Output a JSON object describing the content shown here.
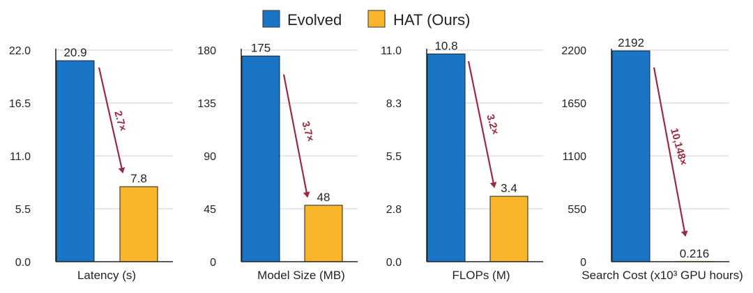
{
  "legend": [
    {
      "label": "Evolved",
      "color": "#1a75c7"
    },
    {
      "label": "HAT (Ours)",
      "color": "#f8b52c"
    }
  ],
  "annotation_color": "#9b2a40",
  "chart_data": [
    {
      "type": "bar",
      "xlabel": "Latency (s)",
      "categories": [
        "Evolved",
        "HAT (Ours)"
      ],
      "values": [
        20.9,
        7.8
      ],
      "value_labels": [
        "20.9",
        "7.8"
      ],
      "ylim": [
        0,
        22
      ],
      "yticks": [
        0,
        5.5,
        11,
        16.5,
        22
      ],
      "ytick_labels": [
        "0.0",
        "5.5",
        "11.0",
        "16.5",
        "22.0"
      ],
      "annotation": "2.7×",
      "grid": true
    },
    {
      "type": "bar",
      "xlabel": "Model Size (MB)",
      "categories": [
        "Evolved",
        "HAT (Ours)"
      ],
      "values": [
        175,
        48
      ],
      "value_labels": [
        "175",
        "48"
      ],
      "ylim": [
        0,
        180
      ],
      "yticks": [
        0,
        45,
        90,
        135,
        180
      ],
      "ytick_labels": [
        "0",
        "45",
        "90",
        "135",
        "180"
      ],
      "annotation": "3.7×",
      "grid": true
    },
    {
      "type": "bar",
      "xlabel": "FLOPs (M)",
      "categories": [
        "Evolved",
        "HAT (Ours)"
      ],
      "values": [
        10.8,
        3.4
      ],
      "value_labels": [
        "10.8",
        "3.4"
      ],
      "ylim": [
        0,
        11
      ],
      "yticks": [
        0,
        2.75,
        5.5,
        8.25,
        11
      ],
      "ytick_labels": [
        "0.0",
        "2.8",
        "5.5",
        "8.3",
        "11.0"
      ],
      "annotation": "3.2×",
      "grid": true
    },
    {
      "type": "bar",
      "xlabel": "Search Cost (x10³ GPU hours)",
      "categories": [
        "Evolved",
        "HAT (Ours)"
      ],
      "values": [
        2192,
        0.216
      ],
      "value_labels": [
        "2192",
        "0.216"
      ],
      "ylim": [
        0,
        2200
      ],
      "yticks": [
        0,
        550,
        1100,
        1650,
        2200
      ],
      "ytick_labels": [
        "0",
        "550",
        "1100",
        "1650",
        "2200"
      ],
      "annotation": "10,148×",
      "grid": true
    }
  ]
}
